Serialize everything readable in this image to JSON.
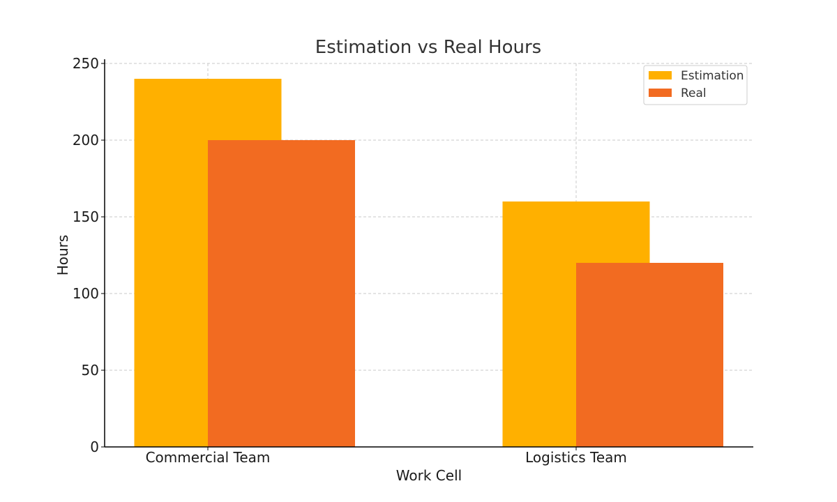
{
  "chart_data": {
    "type": "bar",
    "title": "Estimation vs Real Hours",
    "xlabel": "Work Cell",
    "ylabel": "Hours",
    "categories": [
      "Commercial Team",
      "Logistics Team"
    ],
    "series": [
      {
        "name": "Estimation",
        "values": [
          240,
          160
        ],
        "color": "#FFB000"
      },
      {
        "name": "Real",
        "values": [
          200,
          120
        ],
        "color": "#F26B21"
      }
    ],
    "ylim": [
      0,
      250
    ],
    "yticks": [
      0,
      50,
      100,
      150,
      200,
      250
    ],
    "grid": true,
    "legend_position": "top-right"
  }
}
